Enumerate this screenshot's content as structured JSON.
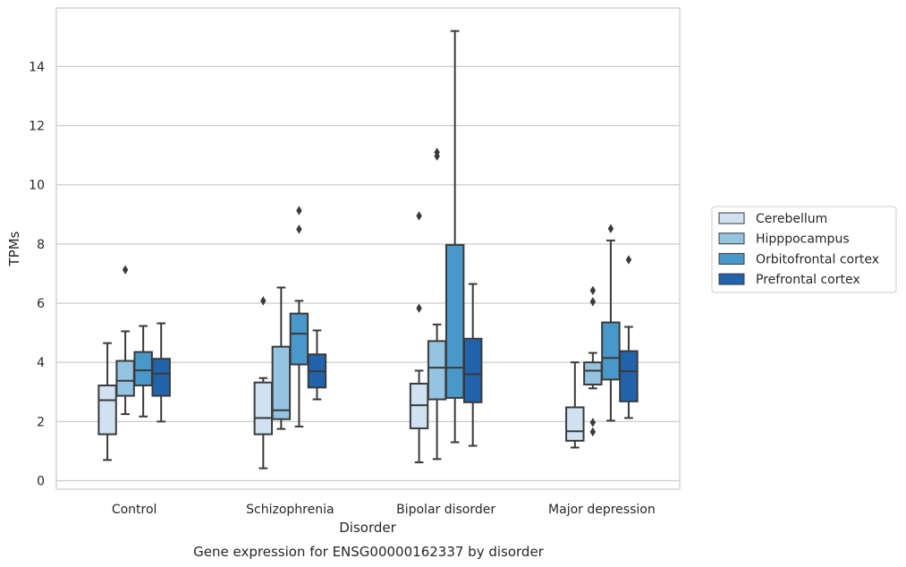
{
  "chart_data": {
    "type": "boxplot",
    "caption": "Gene expression for ENSG00000162337 by disorder",
    "xlabel": "Disorder",
    "ylabel": "TPMs",
    "ylim": [
      -0.3,
      15.9
    ],
    "yticks": [
      0,
      2,
      4,
      6,
      8,
      10,
      12,
      14
    ],
    "grid": "horizontal",
    "legend_position": "right",
    "categories": [
      "Control",
      "Schizophrenia",
      "Bipolar disorder",
      "Major depression"
    ],
    "series": [
      {
        "name": "Cerebellum",
        "color": "#d0e1f2",
        "boxes": [
          {
            "whisker_low": 0.7,
            "q1": 1.57,
            "median": 2.72,
            "q3": 3.22,
            "whisker_high": 4.65,
            "outliers": []
          },
          {
            "whisker_low": 0.42,
            "q1": 1.57,
            "median": 2.12,
            "q3": 3.32,
            "whisker_high": 3.47,
            "outliers": [
              6.08
            ]
          },
          {
            "whisker_low": 0.62,
            "q1": 1.77,
            "median": 2.55,
            "q3": 3.28,
            "whisker_high": 3.72,
            "outliers": [
              5.83,
              8.95
            ]
          },
          {
            "whisker_low": 1.12,
            "q1": 1.35,
            "median": 1.67,
            "q3": 2.48,
            "whisker_high": 4.0,
            "outliers": []
          }
        ]
      },
      {
        "name": "Hipppocampus",
        "color": "#94c4df",
        "boxes": [
          {
            "whisker_low": 2.25,
            "q1": 2.87,
            "median": 3.38,
            "q3": 4.05,
            "whisker_high": 5.05,
            "outliers": [
              7.13
            ]
          },
          {
            "whisker_low": 1.75,
            "q1": 2.08,
            "median": 2.38,
            "q3": 4.53,
            "whisker_high": 6.53,
            "outliers": []
          },
          {
            "whisker_low": 0.73,
            "q1": 2.75,
            "median": 3.82,
            "q3": 4.72,
            "whisker_high": 5.28,
            "outliers": [
              10.97,
              11.1
            ]
          },
          {
            "whisker_low": 3.12,
            "q1": 3.25,
            "median": 3.72,
            "q3": 4.0,
            "whisker_high": 4.32,
            "outliers": [
              1.65,
              1.97,
              6.05,
              6.43
            ]
          }
        ]
      },
      {
        "name": "Orbitofrontal cortex",
        "color": "#4a98c9",
        "boxes": [
          {
            "whisker_low": 2.17,
            "q1": 3.22,
            "median": 3.73,
            "q3": 4.35,
            "whisker_high": 5.23,
            "outliers": []
          },
          {
            "whisker_low": 1.83,
            "q1": 3.93,
            "median": 4.97,
            "q3": 5.65,
            "whisker_high": 6.08,
            "outliers": [
              8.5,
              9.13
            ]
          },
          {
            "whisker_low": 1.3,
            "q1": 2.8,
            "median": 3.82,
            "q3": 7.97,
            "whisker_high": 15.2,
            "outliers": []
          },
          {
            "whisker_low": 2.03,
            "q1": 3.42,
            "median": 4.15,
            "q3": 5.35,
            "whisker_high": 8.12,
            "outliers": [
              8.52
            ]
          }
        ]
      },
      {
        "name": "Prefrontal cortex",
        "color": "#2164ab",
        "boxes": [
          {
            "whisker_low": 2.0,
            "q1": 2.87,
            "median": 3.62,
            "q3": 4.12,
            "whisker_high": 5.32,
            "outliers": []
          },
          {
            "whisker_low": 2.75,
            "q1": 3.15,
            "median": 3.7,
            "q3": 4.27,
            "whisker_high": 5.08,
            "outliers": []
          },
          {
            "whisker_low": 1.18,
            "q1": 2.65,
            "median": 3.6,
            "q3": 4.8,
            "whisker_high": 6.65,
            "outliers": []
          },
          {
            "whisker_low": 2.12,
            "q1": 2.68,
            "median": 3.7,
            "q3": 4.38,
            "whisker_high": 5.2,
            "outliers": [
              7.47
            ]
          }
        ]
      }
    ]
  }
}
